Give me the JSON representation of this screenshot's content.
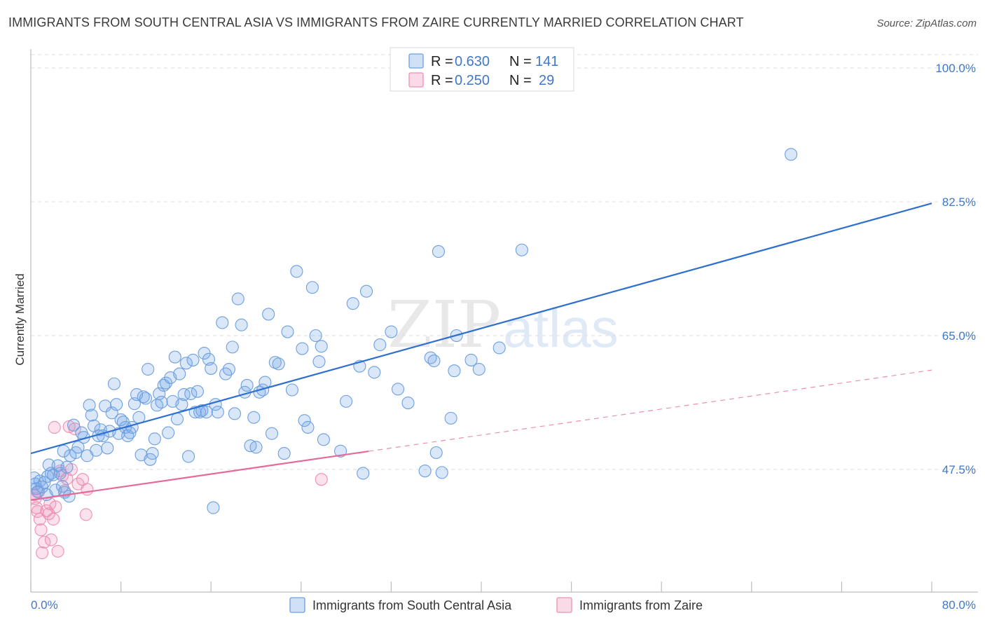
{
  "title": "IMMIGRANTS FROM SOUTH CENTRAL ASIA VS IMMIGRANTS FROM ZAIRE CURRENTLY MARRIED CORRELATION CHART",
  "source": "Source: ZipAtlas.com",
  "watermark": {
    "zip": "ZIP",
    "atlas": "atlas"
  },
  "colors": {
    "blue_fill": "rgba(120,168,232,0.28)",
    "blue_stroke": "#6d9fe0",
    "blue_line": "#2f6fcf",
    "pink_fill": "rgba(240,150,185,0.28)",
    "pink_stroke": "#ec90b3",
    "pink_line": "#e46a98",
    "axis_text": "#3f78c9",
    "grid": "#dcdcdc"
  },
  "legend": [
    {
      "r_label": "R =",
      "r_value": "0.630",
      "n_label": "N =",
      "n_value": "141"
    },
    {
      "r_label": "R =",
      "r_value": "0.250",
      "n_label": "N =",
      "n_value": "29"
    }
  ],
  "chart_data": {
    "type": "scatter",
    "xlabel": "",
    "ylabel": "Currently Married",
    "xlim": [
      0,
      80
    ],
    "ylim": [
      33,
      101.5
    ],
    "x_tick_labels": [
      "0.0%",
      "80.0%"
    ],
    "y_ticks": [
      {
        "value": 100.0,
        "label": "100.0%"
      },
      {
        "value": 82.5,
        "label": "82.5%"
      },
      {
        "value": 65.0,
        "label": "65.0%"
      },
      {
        "value": 47.5,
        "label": "47.5%"
      }
    ],
    "series": [
      {
        "name": "Immigrants from South Central Asia",
        "color": "blue",
        "trend": {
          "x": [
            0,
            80
          ],
          "y": [
            49.6,
            82.3
          ],
          "dashed_from": null
        },
        "points": [
          [
            0.3,
            46.4
          ],
          [
            0.4,
            45.6
          ],
          [
            0.5,
            45.0
          ],
          [
            0.6,
            44.6
          ],
          [
            0.8,
            46.0
          ],
          [
            1.0,
            45.2
          ],
          [
            1.2,
            45.8
          ],
          [
            1.4,
            44.2
          ],
          [
            1.5,
            46.6
          ],
          [
            1.6,
            48.1
          ],
          [
            1.8,
            47.0
          ],
          [
            2.0,
            46.8
          ],
          [
            2.2,
            44.8
          ],
          [
            2.4,
            48.0
          ],
          [
            2.6,
            47.0
          ],
          [
            2.8,
            45.3
          ],
          [
            3.0,
            44.5
          ],
          [
            3.2,
            47.8
          ],
          [
            3.4,
            44.0
          ],
          [
            2.9,
            49.9
          ],
          [
            3.5,
            49.3
          ],
          [
            3.8,
            53.3
          ],
          [
            4.0,
            49.7
          ],
          [
            4.2,
            50.4
          ],
          [
            4.5,
            52.3
          ],
          [
            4.7,
            51.7
          ],
          [
            5.0,
            49.3
          ],
          [
            5.2,
            55.9
          ],
          [
            5.4,
            54.6
          ],
          [
            5.6,
            53.2
          ],
          [
            5.8,
            50.0
          ],
          [
            6.0,
            51.9
          ],
          [
            6.2,
            52.7
          ],
          [
            6.4,
            51.9
          ],
          [
            6.6,
            55.8
          ],
          [
            6.8,
            50.3
          ],
          [
            7.0,
            52.5
          ],
          [
            7.2,
            54.9
          ],
          [
            7.4,
            58.7
          ],
          [
            7.6,
            56.0
          ],
          [
            7.8,
            52.2
          ],
          [
            8.0,
            54.0
          ],
          [
            8.2,
            53.7
          ],
          [
            8.4,
            53.0
          ],
          [
            8.6,
            51.9
          ],
          [
            8.8,
            52.3
          ],
          [
            9.0,
            53.0
          ],
          [
            9.2,
            56.1
          ],
          [
            9.4,
            57.3
          ],
          [
            9.6,
            54.3
          ],
          [
            9.8,
            49.4
          ],
          [
            10.0,
            57.0
          ],
          [
            10.2,
            56.8
          ],
          [
            10.4,
            60.6
          ],
          [
            10.6,
            48.8
          ],
          [
            10.8,
            49.6
          ],
          [
            11.0,
            51.5
          ],
          [
            11.2,
            55.9
          ],
          [
            11.4,
            57.4
          ],
          [
            11.6,
            56.3
          ],
          [
            11.8,
            58.5
          ],
          [
            12.0,
            58.8
          ],
          [
            12.2,
            52.3
          ],
          [
            12.4,
            59.5
          ],
          [
            12.6,
            56.4
          ],
          [
            12.8,
            62.2
          ],
          [
            13.0,
            54.1
          ],
          [
            13.2,
            60.0
          ],
          [
            13.4,
            56.0
          ],
          [
            13.6,
            57.3
          ],
          [
            13.8,
            61.4
          ],
          [
            14.0,
            49.2
          ],
          [
            14.2,
            57.4
          ],
          [
            14.4,
            61.8
          ],
          [
            14.6,
            55.0
          ],
          [
            14.8,
            57.7
          ],
          [
            15.0,
            55.0
          ],
          [
            15.2,
            55.2
          ],
          [
            15.4,
            62.7
          ],
          [
            15.6,
            55.0
          ],
          [
            15.8,
            61.9
          ],
          [
            16.0,
            60.7
          ],
          [
            16.2,
            42.5
          ],
          [
            16.4,
            56.0
          ],
          [
            16.6,
            55.0
          ],
          [
            17.0,
            66.7
          ],
          [
            17.3,
            60.0
          ],
          [
            17.6,
            60.6
          ],
          [
            17.9,
            63.5
          ],
          [
            18.1,
            54.8
          ],
          [
            18.4,
            69.8
          ],
          [
            18.7,
            66.4
          ],
          [
            19.0,
            57.6
          ],
          [
            19.2,
            58.5
          ],
          [
            19.5,
            50.6
          ],
          [
            19.8,
            54.3
          ],
          [
            20.0,
            50.4
          ],
          [
            20.3,
            57.6
          ],
          [
            20.6,
            57.9
          ],
          [
            20.8,
            58.9
          ],
          [
            21.1,
            67.8
          ],
          [
            21.4,
            52.2
          ],
          [
            21.7,
            61.5
          ],
          [
            22.0,
            61.3
          ],
          [
            22.5,
            49.6
          ],
          [
            22.8,
            65.5
          ],
          [
            23.2,
            57.9
          ],
          [
            23.6,
            73.4
          ],
          [
            24.1,
            63.3
          ],
          [
            24.3,
            53.9
          ],
          [
            24.6,
            53.0
          ],
          [
            25.0,
            71.3
          ],
          [
            25.3,
            65.0
          ],
          [
            25.6,
            61.6
          ],
          [
            25.8,
            63.6
          ],
          [
            26.0,
            51.4
          ],
          [
            27.5,
            49.9
          ],
          [
            28.0,
            56.4
          ],
          [
            28.6,
            69.2
          ],
          [
            29.2,
            61.0
          ],
          [
            29.5,
            47.0
          ],
          [
            29.8,
            70.8
          ],
          [
            30.5,
            60.2
          ],
          [
            31.0,
            63.8
          ],
          [
            32.0,
            65.5
          ],
          [
            32.6,
            58.0
          ],
          [
            33.5,
            56.2
          ],
          [
            35.5,
            62.1
          ],
          [
            35.0,
            47.3
          ],
          [
            35.8,
            61.7
          ],
          [
            36.0,
            49.7
          ],
          [
            36.2,
            76.0
          ],
          [
            36.5,
            47.1
          ],
          [
            37.3,
            54.2
          ],
          [
            37.6,
            60.4
          ],
          [
            37.8,
            65.0
          ],
          [
            39.1,
            61.8
          ],
          [
            39.8,
            60.6
          ],
          [
            41.6,
            63.4
          ],
          [
            43.6,
            76.2
          ],
          [
            67.5,
            88.7
          ]
        ]
      },
      {
        "name": "Immigrants from Zaire",
        "color": "pink",
        "trend": {
          "x": [
            0,
            80
          ],
          "y": [
            43.5,
            60.5
          ],
          "dashed_from": 30
        },
        "points": [
          [
            0.3,
            44.2
          ],
          [
            0.4,
            43.7
          ],
          [
            0.5,
            42.5
          ],
          [
            0.6,
            42.0
          ],
          [
            0.7,
            44.6
          ],
          [
            0.8,
            41.0
          ],
          [
            0.9,
            39.6
          ],
          [
            1.0,
            36.6
          ],
          [
            1.2,
            38.0
          ],
          [
            1.4,
            42.1
          ],
          [
            1.6,
            41.7
          ],
          [
            1.8,
            38.3
          ],
          [
            2.0,
            41.0
          ],
          [
            1.7,
            43.0
          ],
          [
            2.2,
            42.6
          ],
          [
            2.4,
            36.8
          ],
          [
            2.6,
            47.3
          ],
          [
            2.8,
            46.7
          ],
          [
            3.0,
            44.7
          ],
          [
            3.2,
            46.3
          ],
          [
            3.4,
            53.1
          ],
          [
            3.6,
            47.5
          ],
          [
            3.9,
            52.8
          ],
          [
            4.2,
            45.6
          ],
          [
            4.6,
            46.2
          ],
          [
            4.9,
            41.6
          ],
          [
            5.0,
            44.9
          ],
          [
            2.1,
            53.0
          ],
          [
            25.8,
            46.2
          ]
        ]
      }
    ]
  }
}
